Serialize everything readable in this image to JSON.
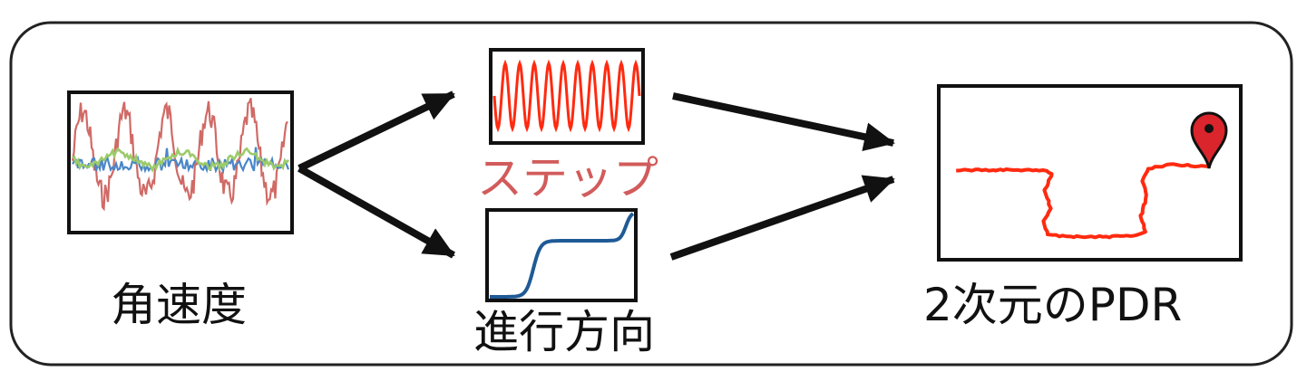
{
  "labels": {
    "angular_velocity": "角速度",
    "step": "ステップ",
    "heading": "進行方向",
    "pdr": "2次元のPDR"
  },
  "colors": {
    "frame": "#111111",
    "gyro_red": "#d06a66",
    "gyro_blue": "#4a86c8",
    "gyro_green": "#9ccb6a",
    "step_wave": "#ff2a10",
    "step_label": "#d25b5b",
    "heading_curve": "#1f5a96",
    "trajectory": "#ff2a10",
    "marker": "#d9252b"
  },
  "icons": {
    "location_marker": "map-pin-icon"
  }
}
